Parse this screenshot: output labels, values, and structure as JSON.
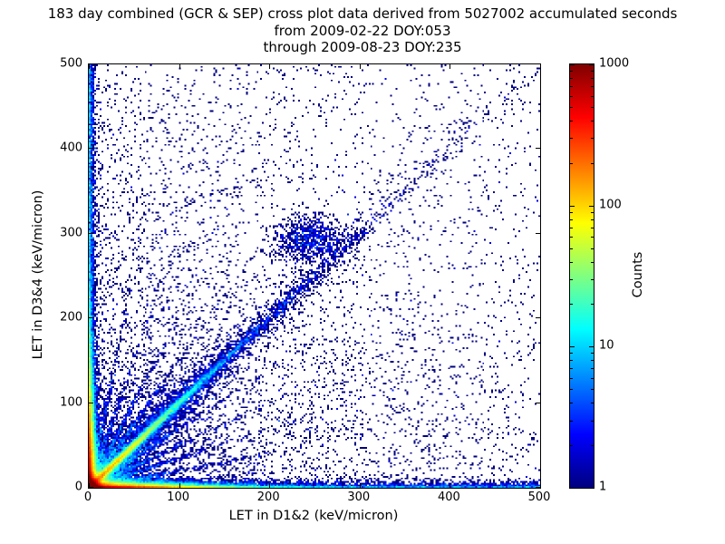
{
  "chart_data": {
    "type": "heatmap",
    "title": "183 day combined (GCR & SEP) cross plot data derived from 5027002 accumulated seconds",
    "subtitle_from": "from 2009-02-22 DOY:053",
    "subtitle_through": "through 2009-08-23 DOY:235",
    "xlabel": "LET in D1&2 (keV/micron)",
    "ylabel": "LET in D3&4 (keV/micron)",
    "xlim": [
      0,
      500
    ],
    "ylim": [
      0,
      500
    ],
    "x_ticks": [
      0,
      100,
      200,
      300,
      400,
      500
    ],
    "y_ticks": [
      0,
      100,
      200,
      300,
      400,
      500
    ],
    "grid": false,
    "pattern": "2D density cross plot: very hot (red, >1000 counts) core at the origin, warm bands hugging both axes fading with distance, a bright cyan-green diagonal y=x streak out to ~120 keV/micron with diffuse blue continuation to ~300, faint radial ray streaks at several slopes from the origin, a small blue-cyan clump near (245,292), and sparse single-count blue speckle thinning toward the upper right",
    "colorbar": {
      "label": "Counts",
      "scale": "log",
      "min": 1,
      "max": 1000,
      "ticks": [
        1,
        10,
        100,
        1000
      ],
      "colormap": "jet",
      "gradient_stops": [
        {
          "pos": 0,
          "color": "#00007f"
        },
        {
          "pos": 12.5,
          "color": "#0000ff"
        },
        {
          "pos": 37.5,
          "color": "#00ffff"
        },
        {
          "pos": 50,
          "color": "#80ff80"
        },
        {
          "pos": 62.5,
          "color": "#ffff00"
        },
        {
          "pos": 87.5,
          "color": "#ff0000"
        },
        {
          "pos": 100,
          "color": "#800000"
        }
      ]
    },
    "render": {
      "seed": 1337,
      "bins": 250,
      "clusters": [
        {
          "t": "core",
          "n": 60000,
          "a": 3.5,
          "b": 3.5
        },
        {
          "t": "core",
          "n": 30000,
          "a": 45,
          "b": 2.2
        },
        {
          "t": "core",
          "n": 30000,
          "a": 2.2,
          "b": 45
        },
        {
          "t": "bandx",
          "n": 3000,
          "b": 2.5
        },
        {
          "t": "bandy",
          "n": 3500,
          "b": 2.5
        },
        {
          "t": "diag",
          "n": 15000,
          "a": 40,
          "s": 2
        },
        {
          "t": "diag",
          "n": 4000,
          "a": 70,
          "s": 12
        },
        {
          "t": "diag",
          "n": 3000,
          "a": 120,
          "s": 5
        },
        {
          "t": "ray",
          "n": 600,
          "m": 0.2,
          "a": 60,
          "s": 1.5
        },
        {
          "t": "ray",
          "n": 600,
          "m": 0.35,
          "a": 60,
          "s": 1.5
        },
        {
          "t": "ray",
          "n": 600,
          "m": 0.5,
          "a": 60,
          "s": 1.5
        },
        {
          "t": "ray",
          "n": 600,
          "m": 0.7,
          "a": 60,
          "s": 1.5
        },
        {
          "t": "ray",
          "n": 600,
          "m": 1.5,
          "a": 60,
          "s": 1.5
        },
        {
          "t": "ray",
          "n": 600,
          "m": 2,
          "a": 60,
          "s": 1.5
        },
        {
          "t": "ray",
          "n": 600,
          "m": 3,
          "a": 60,
          "s": 1.5
        },
        {
          "t": "ray",
          "n": 600,
          "m": 5,
          "a": 60,
          "s": 1.5
        },
        {
          "t": "blob",
          "n": 900,
          "x": 245,
          "y": 292,
          "sx": 20,
          "sy": 14
        },
        {
          "t": "bg",
          "n": 25000,
          "a": 250
        },
        {
          "t": "uni",
          "n": 1200
        }
      ]
    }
  }
}
